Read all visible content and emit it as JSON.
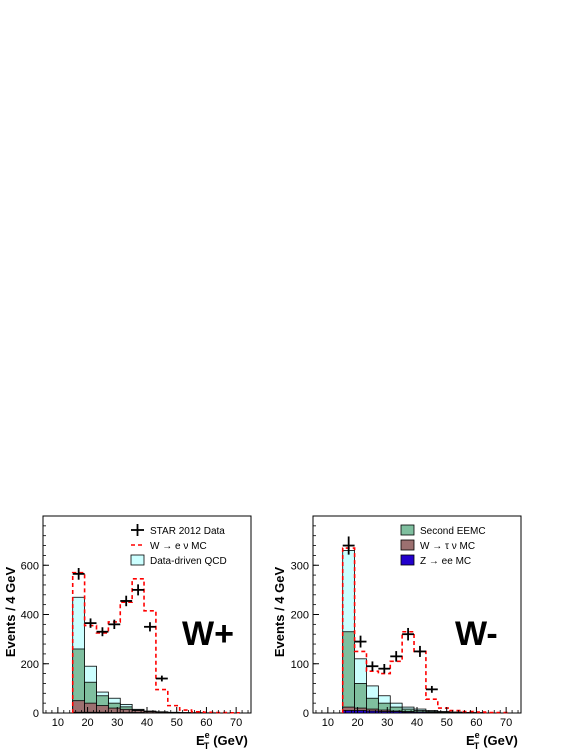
{
  "colors": {
    "data": "#000000",
    "mc": "#ff0000",
    "qcd": "#ccffff",
    "eemc": "#7fbf9f",
    "tau": "#9c7070",
    "zee": "#2200cc"
  },
  "chart_data": [
    {
      "type": "bar",
      "panel_tag": "W+",
      "xlabel": "E",
      "xlabel_sup": "e",
      "xlabel_sub": "T",
      "xlabel_unit": "(GeV)",
      "ylabel": "Events / 4 GeV",
      "xlim": [
        5,
        75
      ],
      "ylim": [
        0,
        800
      ],
      "xticks": [
        10,
        20,
        30,
        40,
        50,
        60,
        70
      ],
      "yticks": [
        0,
        200,
        400,
        600
      ],
      "bin_edges": [
        15,
        19,
        23,
        27,
        31,
        35,
        39,
        43,
        47,
        51,
        55,
        59,
        63,
        67,
        71
      ],
      "legend": {
        "position": "top-right",
        "entries": [
          {
            "label": "STAR 2012 Data",
            "style": "data"
          },
          {
            "label": "W → e ν MC",
            "style": "mc"
          },
          {
            "label": "Data-driven QCD",
            "style": "qcd"
          }
        ]
      },
      "series": [
        {
          "name": "STAR 2012 Data",
          "style": "data",
          "values": [
            565,
            365,
            330,
            360,
            455,
            500,
            350,
            140,
            null,
            null,
            null,
            null,
            null,
            null
          ]
        },
        {
          "name": "W → e ν MC",
          "style": "mc",
          "values": [
            570,
            355,
            325,
            370,
            450,
            545,
            415,
            95,
            30,
            12,
            5,
            3,
            2,
            1
          ]
        },
        {
          "name": "Data-driven QCD",
          "style": "qcd",
          "values": [
            470,
            190,
            85,
            60,
            35,
            15,
            8,
            5,
            3,
            2,
            1,
            1,
            0,
            0
          ]
        },
        {
          "name": "Second EEMC",
          "style": "eemc",
          "values": [
            260,
            125,
            70,
            40,
            25,
            12,
            6,
            4,
            2,
            1,
            1,
            0,
            0,
            0
          ]
        },
        {
          "name": "W → τ ν MC",
          "style": "tau",
          "values": [
            50,
            40,
            30,
            20,
            15,
            10,
            6,
            4,
            2,
            1,
            1,
            0,
            0,
            0
          ]
        },
        {
          "name": "Z → ee MC",
          "style": "zee",
          "values": [
            3,
            3,
            3,
            2,
            2,
            2,
            1,
            1,
            0,
            0,
            0,
            0,
            0,
            0
          ]
        }
      ]
    },
    {
      "type": "bar",
      "panel_tag": "W-",
      "xlabel": "E",
      "xlabel_sup": "e",
      "xlabel_sub": "T",
      "xlabel_unit": "(GeV)",
      "ylabel": "Events / 4 GeV",
      "xlim": [
        5,
        75
      ],
      "ylim": [
        0,
        400
      ],
      "xticks": [
        10,
        20,
        30,
        40,
        50,
        60,
        70
      ],
      "yticks": [
        0,
        100,
        200,
        300
      ],
      "bin_edges": [
        15,
        19,
        23,
        27,
        31,
        35,
        39,
        43,
        47,
        51,
        55,
        59,
        63,
        67,
        71
      ],
      "legend": {
        "position": "top-right",
        "entries": [
          {
            "label": "Second EEMC",
            "style": "eemc"
          },
          {
            "label": "W → τ ν MC",
            "style": "tau"
          },
          {
            "label": "Z → ee MC",
            "style": "zee"
          }
        ]
      },
      "series": [
        {
          "name": "STAR 2012 Data",
          "style": "data",
          "values": [
            340,
            145,
            95,
            90,
            115,
            160,
            125,
            48,
            null,
            null,
            null,
            null,
            null,
            null
          ]
        },
        {
          "name": "W → e ν MC",
          "style": "mc",
          "values": [
            335,
            125,
            85,
            80,
            105,
            165,
            125,
            28,
            10,
            5,
            3,
            2,
            1,
            1
          ]
        },
        {
          "name": "Data-driven QCD",
          "style": "qcd",
          "values": [
            330,
            110,
            55,
            35,
            20,
            12,
            8,
            5,
            3,
            2,
            1,
            1,
            0,
            0
          ]
        },
        {
          "name": "Second EEMC",
          "style": "eemc",
          "values": [
            165,
            60,
            30,
            20,
            12,
            8,
            5,
            3,
            2,
            1,
            1,
            0,
            0,
            0
          ]
        },
        {
          "name": "W → τ ν MC",
          "style": "tau",
          "values": [
            12,
            10,
            8,
            6,
            4,
            3,
            2,
            1,
            1,
            0,
            0,
            0,
            0,
            0
          ]
        },
        {
          "name": "Z → ee MC",
          "style": "zee",
          "values": [
            5,
            5,
            4,
            3,
            3,
            2,
            2,
            1,
            0,
            0,
            0,
            0,
            0,
            0
          ]
        }
      ]
    }
  ]
}
